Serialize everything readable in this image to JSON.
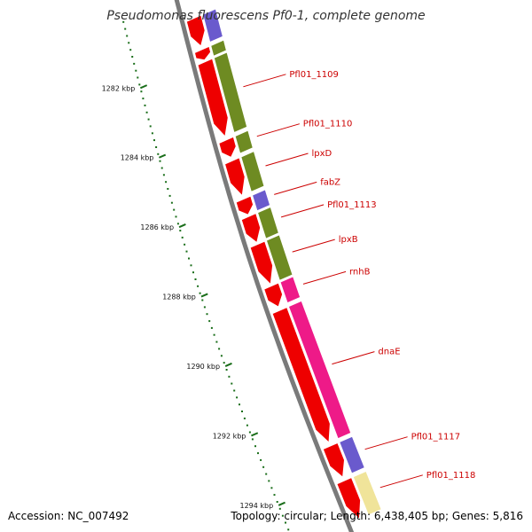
{
  "title": "Pseudomonas fluorescens Pf0-1, complete genome",
  "footer": {
    "accession": "Accession: NC_007492",
    "stats": "Topology: circular; Length: 6,438,405 bp; Genes: 5,816"
  },
  "colors": {
    "backbone": "#7a7a7a",
    "ruler": "#1a6e1a",
    "forward_cds": "#ee0000",
    "cog_green": "#6e8b22",
    "cog_purple": "#6a5acd",
    "cog_pink": "#ee1a88",
    "cog_yellow": "#f0e49a",
    "label": "#cc0000"
  },
  "ruler_labels": [
    "1282 kbp",
    "1284 kbp",
    "1286 kbp",
    "1288 kbp",
    "1290 kbp",
    "1292 kbp",
    "1294 kbp"
  ],
  "genes": [
    {
      "label": "",
      "start": 1280.8,
      "end": 1281.6,
      "cog": "purple"
    },
    {
      "label": "",
      "start": 1281.7,
      "end": 1282.0,
      "cog": "green"
    },
    {
      "label": "Pfl01_1109",
      "start": 1282.05,
      "end": 1284.2,
      "cog": "green"
    },
    {
      "label": "Pfl01_1110",
      "start": 1284.3,
      "end": 1284.8,
      "cog": "green"
    },
    {
      "label": "lpxD",
      "start": 1284.9,
      "end": 1285.9,
      "cog": "green"
    },
    {
      "label": "fabZ",
      "start": 1286.0,
      "end": 1286.45,
      "cog": "purple"
    },
    {
      "label": "Pfl01_1113",
      "start": 1286.5,
      "end": 1287.25,
      "cog": "green"
    },
    {
      "label": "lpxB",
      "start": 1287.3,
      "end": 1288.45,
      "cog": "green"
    },
    {
      "label": "rnhB",
      "start": 1288.5,
      "end": 1289.1,
      "cog": "pink"
    },
    {
      "label": "dnaE",
      "start": 1289.2,
      "end": 1293.0,
      "cog": "pink"
    },
    {
      "label": "Pfl01_1117",
      "start": 1293.1,
      "end": 1294.0,
      "cog": "purple"
    },
    {
      "label": "Pfl01_1118",
      "start": 1294.1,
      "end": 1295.2,
      "cog": "yellow"
    }
  ]
}
